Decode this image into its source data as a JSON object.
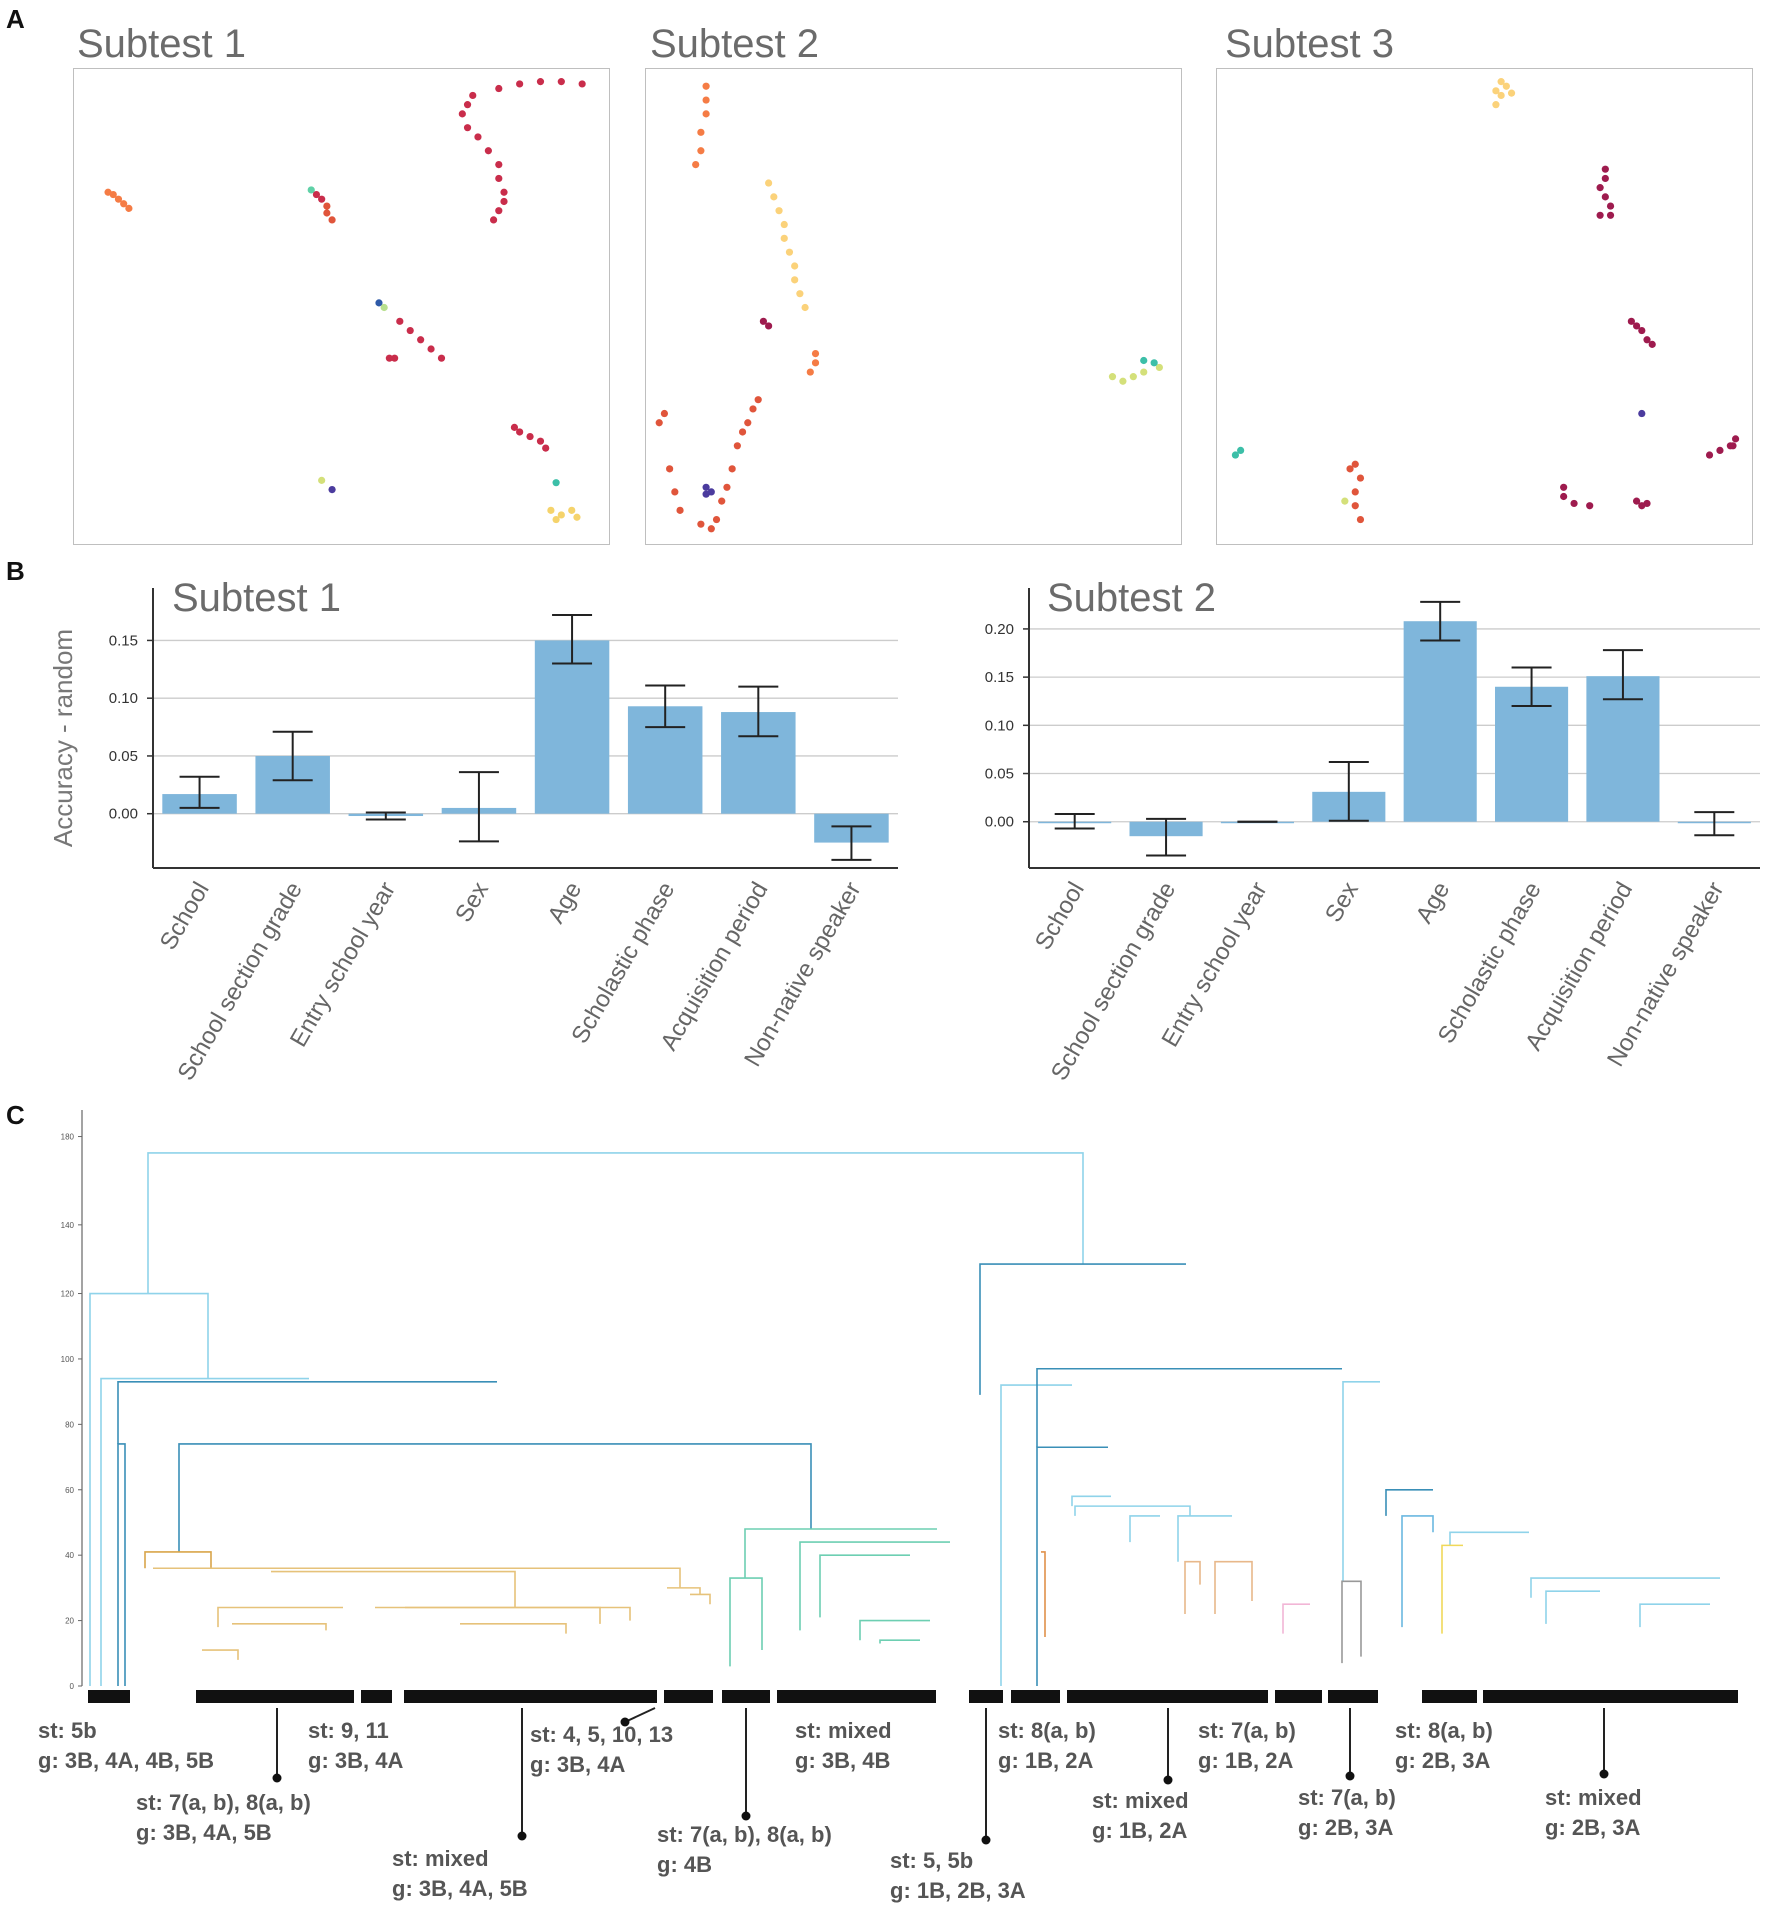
{
  "panels": {
    "a": "A",
    "b": "B",
    "c": "C"
  },
  "scatter": [
    {
      "title": "Subtest 1",
      "clusters": [
        {
          "color": "#f57c45",
          "points": [
            [
              0.05,
              0.75
            ],
            [
              0.06,
              0.745
            ],
            [
              0.07,
              0.735
            ],
            [
              0.08,
              0.725
            ],
            [
              0.09,
              0.715
            ]
          ]
        },
        {
          "color": "#5fd1a7",
          "points": [
            [
              0.44,
              0.755
            ]
          ]
        },
        {
          "color": "#c92d4b",
          "points": [
            [
              0.45,
              0.745
            ],
            [
              0.46,
              0.735
            ]
          ]
        },
        {
          "color": "#e0553b",
          "points": [
            [
              0.47,
              0.72
            ],
            [
              0.47,
              0.705
            ],
            [
              0.48,
              0.69
            ]
          ]
        },
        {
          "color": "#c92d4b",
          "points": [
            [
              0.75,
              0.96
            ],
            [
              0.74,
              0.94
            ],
            [
              0.73,
              0.92
            ],
            [
              0.74,
              0.89
            ],
            [
              0.76,
              0.87
            ],
            [
              0.78,
              0.84
            ],
            [
              0.8,
              0.81
            ],
            [
              0.8,
              0.78
            ],
            [
              0.81,
              0.75
            ],
            [
              0.81,
              0.73
            ],
            [
              0.8,
              0.71
            ],
            [
              0.79,
              0.69
            ],
            [
              0.8,
              0.975
            ],
            [
              0.84,
              0.985
            ],
            [
              0.88,
              0.99
            ],
            [
              0.92,
              0.99
            ],
            [
              0.96,
              0.985
            ]
          ]
        },
        {
          "color": "#2e5aa8",
          "points": [
            [
              0.57,
              0.51
            ]
          ]
        },
        {
          "color": "#b8e08f",
          "points": [
            [
              0.58,
              0.5
            ]
          ]
        },
        {
          "color": "#c92d4b",
          "points": [
            [
              0.61,
              0.47
            ],
            [
              0.63,
              0.45
            ],
            [
              0.65,
              0.43
            ],
            [
              0.67,
              0.41
            ],
            [
              0.69,
              0.39
            ],
            [
              0.6,
              0.39
            ],
            [
              0.59,
              0.39
            ]
          ]
        },
        {
          "color": "#c92d4b",
          "points": [
            [
              0.83,
              0.24
            ],
            [
              0.84,
              0.23
            ],
            [
              0.86,
              0.22
            ],
            [
              0.88,
              0.21
            ],
            [
              0.89,
              0.195
            ]
          ]
        },
        {
          "color": "#3cbfa8",
          "points": [
            [
              0.91,
              0.12
            ]
          ]
        },
        {
          "color": "#f5d36b",
          "points": [
            [
              0.9,
              0.06
            ],
            [
              0.92,
              0.05
            ],
            [
              0.94,
              0.06
            ],
            [
              0.95,
              0.045
            ],
            [
              0.91,
              0.04
            ]
          ]
        },
        {
          "color": "#d4e07a",
          "points": [
            [
              0.46,
              0.125
            ]
          ]
        },
        {
          "color": "#4b3b9e",
          "points": [
            [
              0.48,
              0.105
            ]
          ]
        }
      ]
    },
    {
      "title": "Subtest 2",
      "clusters": [
        {
          "color": "#f57c45",
          "points": [
            [
              0.1,
              0.98
            ],
            [
              0.1,
              0.95
            ],
            [
              0.1,
              0.92
            ],
            [
              0.09,
              0.88
            ],
            [
              0.09,
              0.84
            ],
            [
              0.08,
              0.81
            ]
          ]
        },
        {
          "color": "#fbd27a",
          "points": [
            [
              0.22,
              0.77
            ],
            [
              0.23,
              0.74
            ],
            [
              0.24,
              0.71
            ],
            [
              0.25,
              0.68
            ],
            [
              0.25,
              0.65
            ],
            [
              0.26,
              0.62
            ],
            [
              0.27,
              0.59
            ],
            [
              0.27,
              0.56
            ],
            [
              0.28,
              0.53
            ],
            [
              0.29,
              0.5
            ]
          ]
        },
        {
          "color": "#9e1b4e",
          "points": [
            [
              0.21,
              0.47
            ],
            [
              0.22,
              0.46
            ]
          ]
        },
        {
          "color": "#f57c45",
          "points": [
            [
              0.31,
              0.4
            ],
            [
              0.31,
              0.38
            ],
            [
              0.3,
              0.36
            ]
          ]
        },
        {
          "color": "#e0553b",
          "points": [
            [
              0.02,
              0.27
            ],
            [
              0.01,
              0.25
            ],
            [
              0.03,
              0.15
            ],
            [
              0.04,
              0.1
            ],
            [
              0.05,
              0.06
            ],
            [
              0.11,
              0.02
            ],
            [
              0.09,
              0.03
            ],
            [
              0.12,
              0.04
            ],
            [
              0.15,
              0.15
            ],
            [
              0.16,
              0.2
            ],
            [
              0.17,
              0.23
            ],
            [
              0.18,
              0.25
            ],
            [
              0.19,
              0.28
            ],
            [
              0.2,
              0.3
            ],
            [
              0.14,
              0.11
            ],
            [
              0.13,
              0.08
            ]
          ]
        },
        {
          "color": "#4b3b9e",
          "points": [
            [
              0.1,
              0.11
            ],
            [
              0.11,
              0.1
            ],
            [
              0.1,
              0.095
            ]
          ]
        },
        {
          "color": "#d4e07a",
          "points": [
            [
              0.88,
              0.35
            ],
            [
              0.9,
              0.34
            ],
            [
              0.92,
              0.35
            ],
            [
              0.94,
              0.36
            ],
            [
              0.97,
              0.37
            ]
          ]
        },
        {
          "color": "#3cbfa8",
          "points": [
            [
              0.94,
              0.385
            ],
            [
              0.96,
              0.38
            ]
          ]
        }
      ]
    },
    {
      "title": "Subtest 3",
      "clusters": [
        {
          "color": "#fbd27a",
          "points": [
            [
              0.52,
              0.97
            ],
            [
              0.53,
              0.96
            ],
            [
              0.55,
              0.965
            ],
            [
              0.54,
              0.98
            ],
            [
              0.53,
              0.99
            ],
            [
              0.52,
              0.94
            ]
          ]
        },
        {
          "color": "#9e1b4e",
          "points": [
            [
              0.73,
              0.8
            ],
            [
              0.73,
              0.78
            ],
            [
              0.72,
              0.76
            ],
            [
              0.73,
              0.74
            ],
            [
              0.74,
              0.72
            ],
            [
              0.72,
              0.7
            ],
            [
              0.74,
              0.7
            ]
          ]
        },
        {
          "color": "#9e1b4e",
          "points": [
            [
              0.78,
              0.47
            ],
            [
              0.79,
              0.46
            ],
            [
              0.8,
              0.45
            ],
            [
              0.81,
              0.43
            ],
            [
              0.82,
              0.42
            ]
          ]
        },
        {
          "color": "#4b3b9e",
          "points": [
            [
              0.8,
              0.27
            ]
          ]
        },
        {
          "color": "#9e1b4e",
          "points": [
            [
              0.93,
              0.18
            ],
            [
              0.95,
              0.19
            ],
            [
              0.97,
              0.2
            ],
            [
              0.98,
              0.215
            ],
            [
              0.975,
              0.2
            ]
          ]
        },
        {
          "color": "#9e1b4e",
          "points": [
            [
              0.65,
              0.11
            ],
            [
              0.65,
              0.09
            ],
            [
              0.67,
              0.075
            ],
            [
              0.7,
              0.07
            ],
            [
              0.79,
              0.08
            ],
            [
              0.81,
              0.075
            ],
            [
              0.8,
              0.07
            ]
          ]
        },
        {
          "color": "#3cbfa8",
          "points": [
            [
              0.03,
              0.19
            ],
            [
              0.02,
              0.18
            ]
          ]
        },
        {
          "color": "#e0553b",
          "points": [
            [
              0.25,
              0.16
            ],
            [
              0.26,
              0.13
            ],
            [
              0.25,
              0.1
            ],
            [
              0.25,
              0.07
            ],
            [
              0.26,
              0.04
            ],
            [
              0.24,
              0.15
            ]
          ]
        },
        {
          "color": "#d4e07a",
          "points": [
            [
              0.23,
              0.08
            ]
          ]
        }
      ]
    }
  ],
  "chart_data": [
    {
      "type": "bar",
      "title": "Subtest 1",
      "ylabel": "Accuracy - random",
      "categories": [
        "School",
        "School section grade",
        "Entry school year",
        "Sex",
        "Age",
        "Scholastic phase",
        "Acquisition period",
        "Non-native speaker"
      ],
      "values": [
        0.017,
        0.05,
        -0.002,
        0.005,
        0.15,
        0.093,
        0.088,
        -0.025
      ],
      "err_low": [
        0.005,
        0.029,
        -0.005,
        -0.024,
        0.13,
        0.075,
        0.067,
        -0.04
      ],
      "err_high": [
        0.032,
        0.071,
        0.001,
        0.036,
        0.172,
        0.111,
        0.11,
        -0.011
      ],
      "yticks": [
        "0.15",
        "0.10",
        "0.05",
        "0.00"
      ],
      "ytick_values": [
        0.15,
        0.1,
        0.05,
        0.0
      ],
      "ylim": [
        -0.047,
        0.185
      ]
    },
    {
      "type": "bar",
      "title": "Subtest 2",
      "ylabel": "",
      "categories": [
        "School",
        "School section grade",
        "Entry school year",
        "Sex",
        "Age",
        "Scholastic phase",
        "Acquisition period",
        "Non-native speaker"
      ],
      "values": [
        0.0,
        -0.015,
        0.0,
        0.031,
        0.208,
        0.14,
        0.151,
        -0.001
      ],
      "err_low": [
        -0.007,
        -0.035,
        0.0,
        0.001,
        0.188,
        0.12,
        0.127,
        -0.014
      ],
      "err_high": [
        0.008,
        0.003,
        0.0,
        0.062,
        0.228,
        0.16,
        0.178,
        0.01
      ],
      "yticks": [
        "0.20",
        "0.15",
        "0.10",
        "0.05",
        "0.00"
      ],
      "ytick_values": [
        0.2,
        0.15,
        0.1,
        0.05,
        0.0
      ],
      "ylim": [
        -0.048,
        0.23
      ]
    }
  ],
  "dendrogram": {
    "yticks": [
      "180",
      "140",
      "120",
      "100",
      "80",
      "60",
      "40",
      "20",
      "0"
    ],
    "annotations": [
      {
        "st": "st: 5b",
        "g": "g: 3B, 4A, 4B, 5B"
      },
      {
        "st": "st: 7(a, b), 8(a, b)",
        "g": "g: 3B, 4A, 5B"
      },
      {
        "st": "st: 9, 11",
        "g": "g: 3B, 4A"
      },
      {
        "st": "st: mixed",
        "g": "g: 3B, 4A, 5B"
      },
      {
        "st": "st: 4, 5, 10, 13",
        "g": "g: 3B, 4A"
      },
      {
        "st": "st: 7(a, b), 8(a, b)",
        "g": "g: 4B"
      },
      {
        "st": "st: mixed",
        "g": "g: 3B, 4B"
      },
      {
        "st": "st: 5, 5b",
        "g": "g: 1B, 2B, 3A"
      },
      {
        "st": "st: 8(a, b)",
        "g": "g: 1B, 2A"
      },
      {
        "st": "st: mixed",
        "g": "g: 1B, 2A"
      },
      {
        "st": "st: 7(a, b)",
        "g": "g: 1B, 2A"
      },
      {
        "st": "st: 7(a, b)",
        "g": "g: 2B, 3A"
      },
      {
        "st": "st: 8(a, b)",
        "g": "g: 2B, 3A"
      },
      {
        "st": "st: mixed",
        "g": "g: 2B, 3A"
      }
    ]
  }
}
